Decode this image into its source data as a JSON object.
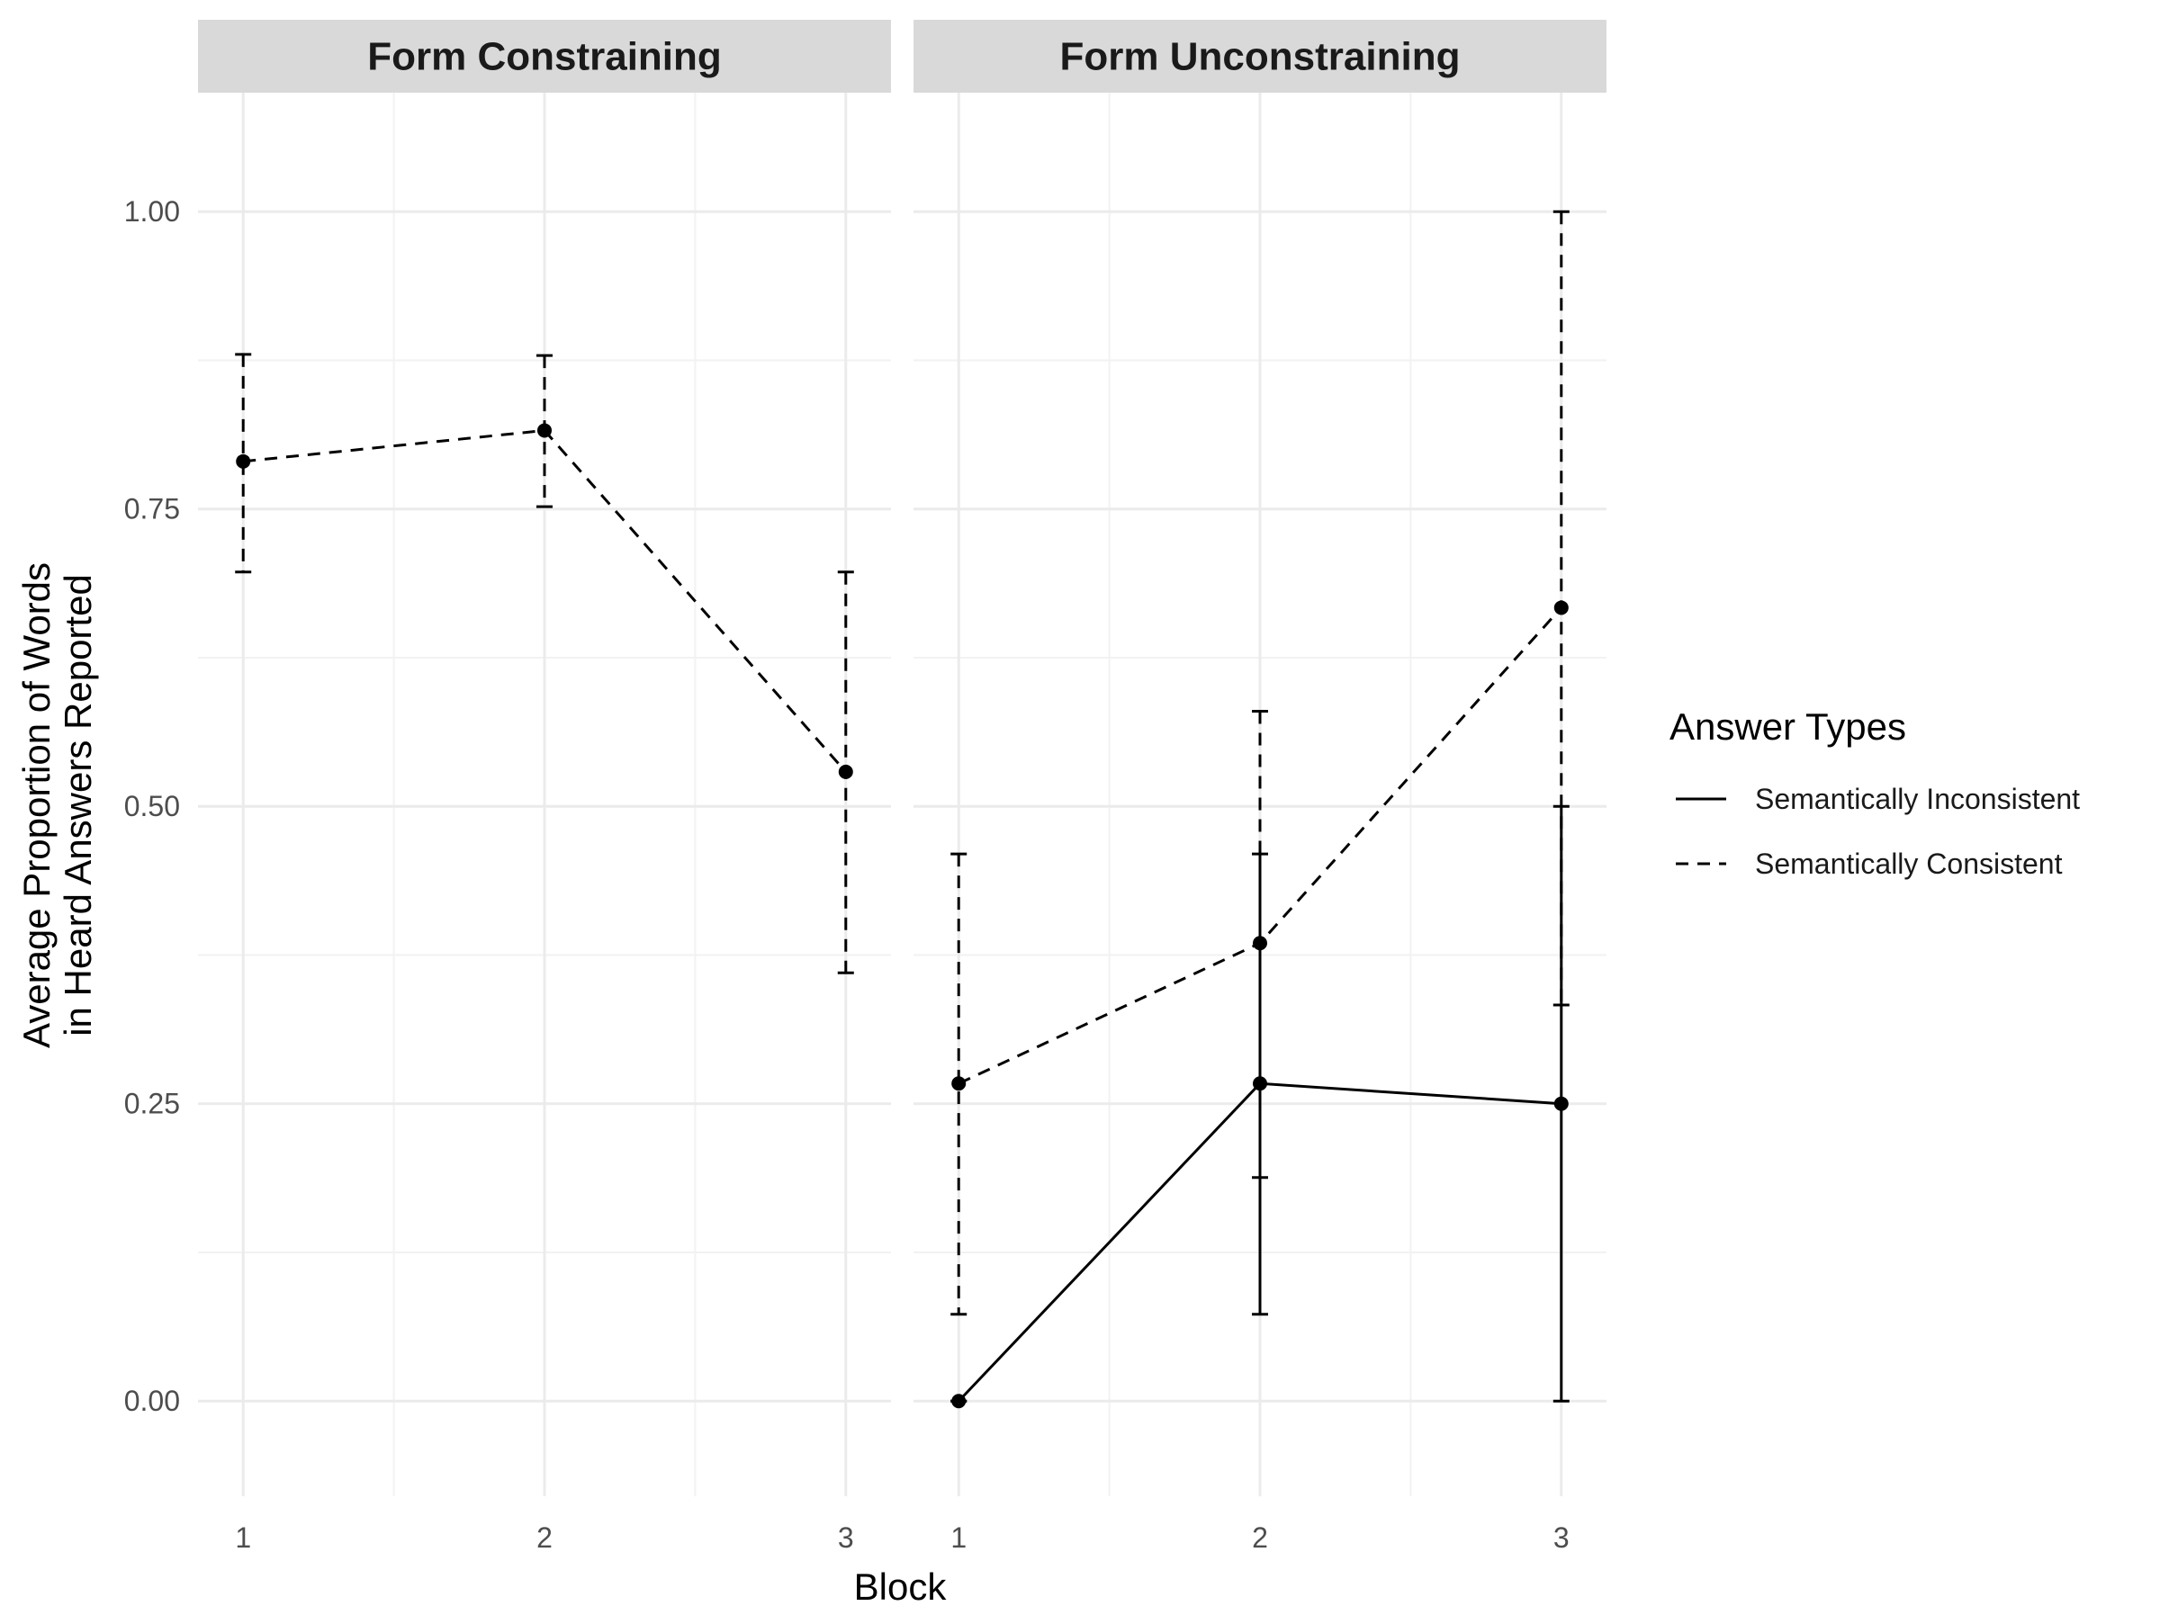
{
  "chart_data": {
    "type": "line",
    "xlabel": "Block",
    "ylabel_lines": [
      "Average Proportion of Words",
      "in Heard Answers Reported"
    ],
    "ylim": [
      -0.08,
      1.1
    ],
    "xlim": [
      0.85,
      3.15
    ],
    "y_ticks": [
      0,
      0.25,
      0.5,
      0.75,
      1
    ],
    "y_tick_labels": [
      "0.00",
      "0.25",
      "0.50",
      "0.75",
      "1.00"
    ],
    "x_ticks": [
      1,
      2,
      3
    ],
    "x_tick_labels": [
      "1",
      "2",
      "3"
    ],
    "grid": true,
    "legend": {
      "title": "Answer Types",
      "position": "right",
      "entries": [
        {
          "label": "Semantically Inconsistent",
          "linetype": "solid"
        },
        {
          "label": "Semantically Consistent",
          "linetype": "dashed"
        }
      ]
    },
    "panels": [
      {
        "title": "Form Constraining",
        "series": [
          {
            "legend_index": 1,
            "linetype": "dashed",
            "points": [
              {
                "x": 1,
                "y": 0.79,
                "ymin": 0.697,
                "ymax": 0.88
              },
              {
                "x": 2,
                "y": 0.816,
                "ymin": 0.752,
                "ymax": 0.879
              },
              {
                "x": 3,
                "y": 0.529,
                "ymin": 0.36,
                "ymax": 0.697
              }
            ]
          }
        ]
      },
      {
        "title": "Form Unconstraining",
        "series": [
          {
            "legend_index": 0,
            "linetype": "solid",
            "points": [
              {
                "x": 1,
                "y": 0.0,
                "ymin": 0.0,
                "ymax": 0.0
              },
              {
                "x": 2,
                "y": 0.267,
                "ymin": 0.073,
                "ymax": 0.46
              },
              {
                "x": 3,
                "y": 0.25,
                "ymin": 0.0,
                "ymax": 0.5
              }
            ]
          },
          {
            "legend_index": 1,
            "linetype": "dashed",
            "points": [
              {
                "x": 1,
                "y": 0.267,
                "ymin": 0.073,
                "ymax": 0.46
              },
              {
                "x": 2,
                "y": 0.385,
                "ymin": 0.188,
                "ymax": 0.58
              },
              {
                "x": 3,
                "y": 0.667,
                "ymin": 0.333,
                "ymax": 1.0
              }
            ]
          }
        ]
      }
    ]
  },
  "colors": {
    "line": "#000000",
    "grid_major": "#ebebeb",
    "grid_minor": "#f2f2f2",
    "strip_bg": "#d9d9d9"
  }
}
